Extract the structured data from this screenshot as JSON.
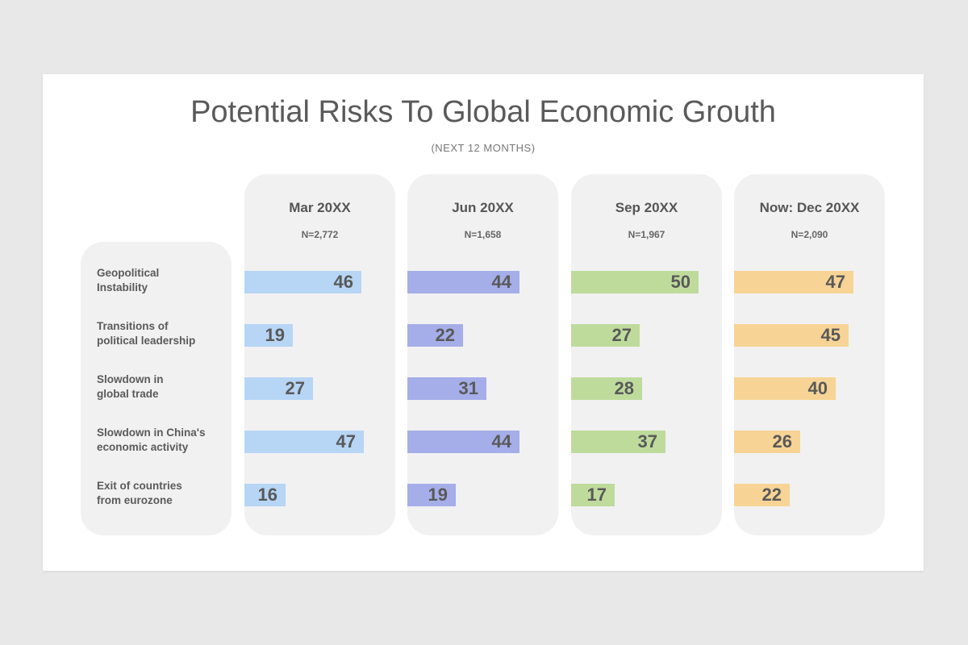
{
  "title": "Potential Risks To Global Economic Grouth",
  "subtitle": "(NEXT  12 MONTHS)",
  "chart_data": {
    "type": "bar",
    "orientation": "horizontal",
    "categories": [
      [
        "Geopolitical",
        "Instability"
      ],
      [
        "Transitions  of",
        "political  leadership"
      ],
      [
        "Slowdown  in",
        "global  trade"
      ],
      [
        "Slowdown  in China's",
        "economic  activity"
      ],
      [
        "Exit of countries",
        "from eurozone"
      ]
    ],
    "series": [
      {
        "name": "Mar 20XX",
        "n": "N=2,772",
        "color": "#b7d5f5",
        "values": [
          46,
          19,
          27,
          47,
          16
        ]
      },
      {
        "name": "Jun 20XX",
        "n": "N=1,658",
        "color": "#a5aee8",
        "values": [
          44,
          22,
          31,
          44,
          19
        ]
      },
      {
        "name": "Sep 20XX",
        "n": "N=1,967",
        "color": "#bedb9c",
        "values": [
          50,
          27,
          28,
          37,
          17
        ]
      },
      {
        "name": "Now: Dec 20XX",
        "n": "N=2,090",
        "color": "#f7d495",
        "values": [
          47,
          45,
          40,
          26,
          22
        ]
      }
    ],
    "xlim": [
      0,
      50
    ]
  }
}
